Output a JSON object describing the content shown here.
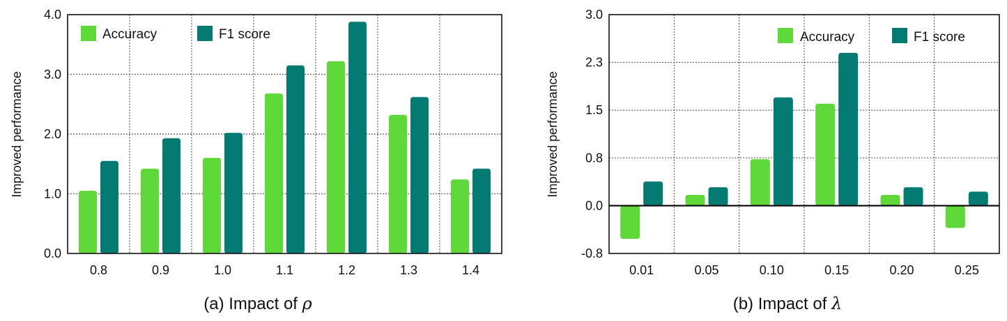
{
  "colors": {
    "accuracy": "#5fd83a",
    "f1": "#047b72"
  },
  "chart_data": [
    {
      "type": "bar",
      "caption_text": "(a) Impact of ",
      "caption_symbol": "ρ",
      "ylabel": "Improved performance",
      "xlabel": "",
      "categories": [
        "0.8",
        "0.9",
        "1.0",
        "1.1",
        "1.2",
        "1.3",
        "1.4"
      ],
      "yticks": [
        "0.0",
        "1.0",
        "2.0",
        "3.0",
        "4.0"
      ],
      "ylim": [
        0,
        4
      ],
      "grid": true,
      "legend_position": "top-left",
      "series": [
        {
          "name": "Accuracy",
          "values": [
            1.05,
            1.42,
            1.6,
            2.68,
            3.22,
            2.32,
            1.24
          ]
        },
        {
          "name": "F1 score",
          "values": [
            1.55,
            1.93,
            2.02,
            3.15,
            3.88,
            2.62,
            1.42
          ]
        }
      ]
    },
    {
      "type": "bar",
      "caption_text": "(b) Impact of ",
      "caption_symbol": "λ",
      "ylabel": "Improved performance",
      "xlabel": "",
      "categories": [
        "0.01",
        "0.05",
        "0.10",
        "0.15",
        "0.20",
        "0.25"
      ],
      "yticks": [
        "-0.8",
        "0.0",
        "0.8",
        "1.5",
        "2.3",
        "3.0"
      ],
      "ylim": [
        -0.75,
        3.0
      ],
      "grid": true,
      "legend_position": "top-right",
      "series": [
        {
          "name": "Accuracy",
          "values": [
            -0.52,
            0.17,
            0.73,
            1.6,
            0.17,
            -0.35
          ]
        },
        {
          "name": "F1 score",
          "values": [
            0.38,
            0.29,
            1.7,
            2.4,
            0.29,
            0.22
          ]
        }
      ]
    }
  ]
}
